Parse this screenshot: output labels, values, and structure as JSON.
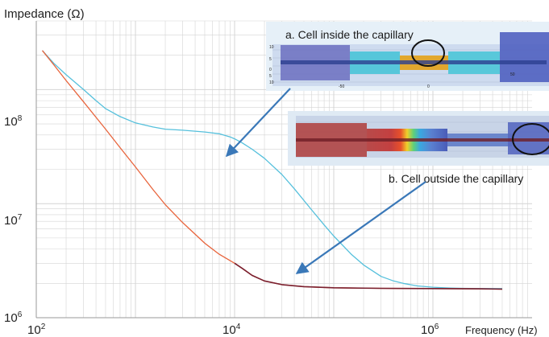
{
  "chart_data": {
    "type": "line",
    "ylabel": "Impedance (Ω)",
    "xlabel": "Frequency (Hz)",
    "x_scale": "log",
    "y_scale": "log",
    "xlim": [
      100,
      10000000
    ],
    "ylim": [
      1000000,
      400000000
    ],
    "grid": true,
    "x_ticks": [
      {
        "value": 100,
        "base": "10",
        "exp": "2"
      },
      {
        "value": 10000,
        "base": "10",
        "exp": "4"
      },
      {
        "value": 1000000,
        "base": "10",
        "exp": "6"
      }
    ],
    "y_ticks": [
      {
        "value": 1000000,
        "base": "10",
        "exp": "6"
      },
      {
        "value": 10000000,
        "base": "10",
        "exp": "7"
      },
      {
        "value": 100000000,
        "base": "10",
        "exp": "8"
      }
    ],
    "series": [
      {
        "color": "#55c0dc",
        "x": [
          115,
          150,
          200,
          300,
          400,
          500,
          700,
          1000,
          1500,
          2000,
          3000,
          5000,
          7000,
          9000,
          10000,
          12000,
          15000,
          20000,
          30000,
          40000,
          60000,
          80000,
          100000,
          150000,
          200000,
          300000,
          400000,
          500000,
          700000,
          1000000,
          1500000,
          2000000,
          3000000,
          4000000,
          5000000
        ],
        "y": [
          220000000,
          170000000,
          135000000,
          100000000,
          80000000,
          68000000,
          58000000,
          51000000,
          47000000,
          45000000,
          44000000,
          42500000,
          41000000,
          38500000,
          37000000,
          34000000,
          30000000,
          25000000,
          18000000,
          13500000,
          8800000,
          6500000,
          5200000,
          3600000,
          2900000,
          2300000,
          2100000,
          2000000,
          1900000,
          1850000,
          1820000,
          1810000,
          1800000,
          1800000,
          1800000
        ]
      },
      {
        "color": "#e8643c",
        "x": [
          115,
          150,
          200,
          300,
          500,
          700,
          1000,
          1500,
          2000,
          3000,
          5000,
          7000,
          10000,
          12000,
          15000,
          20000,
          30000,
          50000,
          100000,
          300000,
          1000000,
          3000000,
          5000000
        ],
        "y": [
          220000000,
          165000000,
          120000000,
          78000000,
          45000000,
          31000000,
          21000000,
          13300000,
          9800000,
          6800000,
          4500000,
          3600000,
          3000000,
          2700000,
          2350000,
          2100000,
          1950000,
          1870000,
          1830000,
          1810000,
          1800000,
          1790000,
          1780000
        ]
      }
    ],
    "overlay_series": {
      "color": "#7a1f2e",
      "x": [
        10000,
        12000,
        15000,
        20000,
        30000,
        50000,
        100000,
        300000,
        1000000,
        3000000,
        5000000
      ],
      "y": [
        3000000,
        2700000,
        2350000,
        2100000,
        1950000,
        1870000,
        1830000,
        1810000,
        1800000,
        1790000,
        1780000
      ]
    },
    "annotations": [
      {
        "text": "a. Cell inside the capillary",
        "arrow_to_x": 9000,
        "arrow_to_y": 38500000
      },
      {
        "text": "b. Cell outside the capillary",
        "arrow_to_x": 20000,
        "arrow_to_y": 2450000
      }
    ],
    "inset_a_ticks": [
      "10",
      "5",
      "0",
      "5",
      "10",
      "-50",
      "0",
      "50"
    ]
  },
  "colors": {
    "grid": "#d4d4d4",
    "axis": "#9a9a9a",
    "arrow": "#3a78b8"
  }
}
